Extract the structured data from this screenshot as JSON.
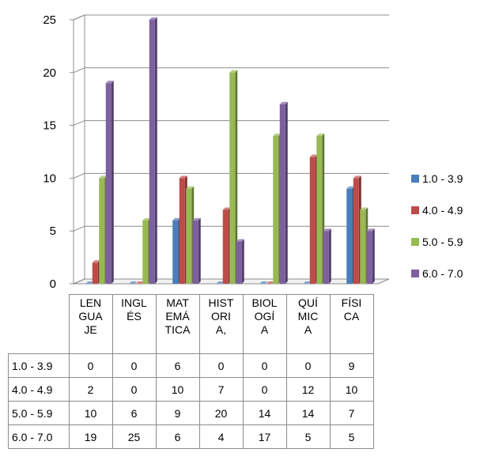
{
  "chart_data": {
    "type": "bar",
    "title": "",
    "xlabel": "",
    "ylabel": "",
    "categories": [
      "LENGUAJE",
      "INGLÉS",
      "MATEMÁTICA",
      "HISTORIA,",
      "BIOLOGÍA",
      "QUÍMICA",
      "FÍSICA"
    ],
    "series": [
      {
        "name": "1.0 - 3.9",
        "color": "#4a7ebb",
        "values": [
          0,
          0,
          6,
          0,
          0,
          0,
          9
        ]
      },
      {
        "name": "4.0 - 4.9",
        "color": "#be4b48",
        "values": [
          2,
          0,
          10,
          7,
          0,
          12,
          10
        ]
      },
      {
        "name": "5.0 - 5.9",
        "color": "#98b954",
        "values": [
          10,
          6,
          9,
          20,
          14,
          14,
          7
        ]
      },
      {
        "name": "6.0 - 7.0",
        "color": "#7d60a0",
        "values": [
          19,
          25,
          6,
          4,
          17,
          5,
          5
        ]
      }
    ],
    "ylim": [
      0,
      25
    ],
    "yticks": [
      0,
      5,
      10,
      15,
      20,
      25
    ],
    "grid": true,
    "legend_position": "right",
    "style": "3d-clustered-column",
    "data_table": true
  }
}
